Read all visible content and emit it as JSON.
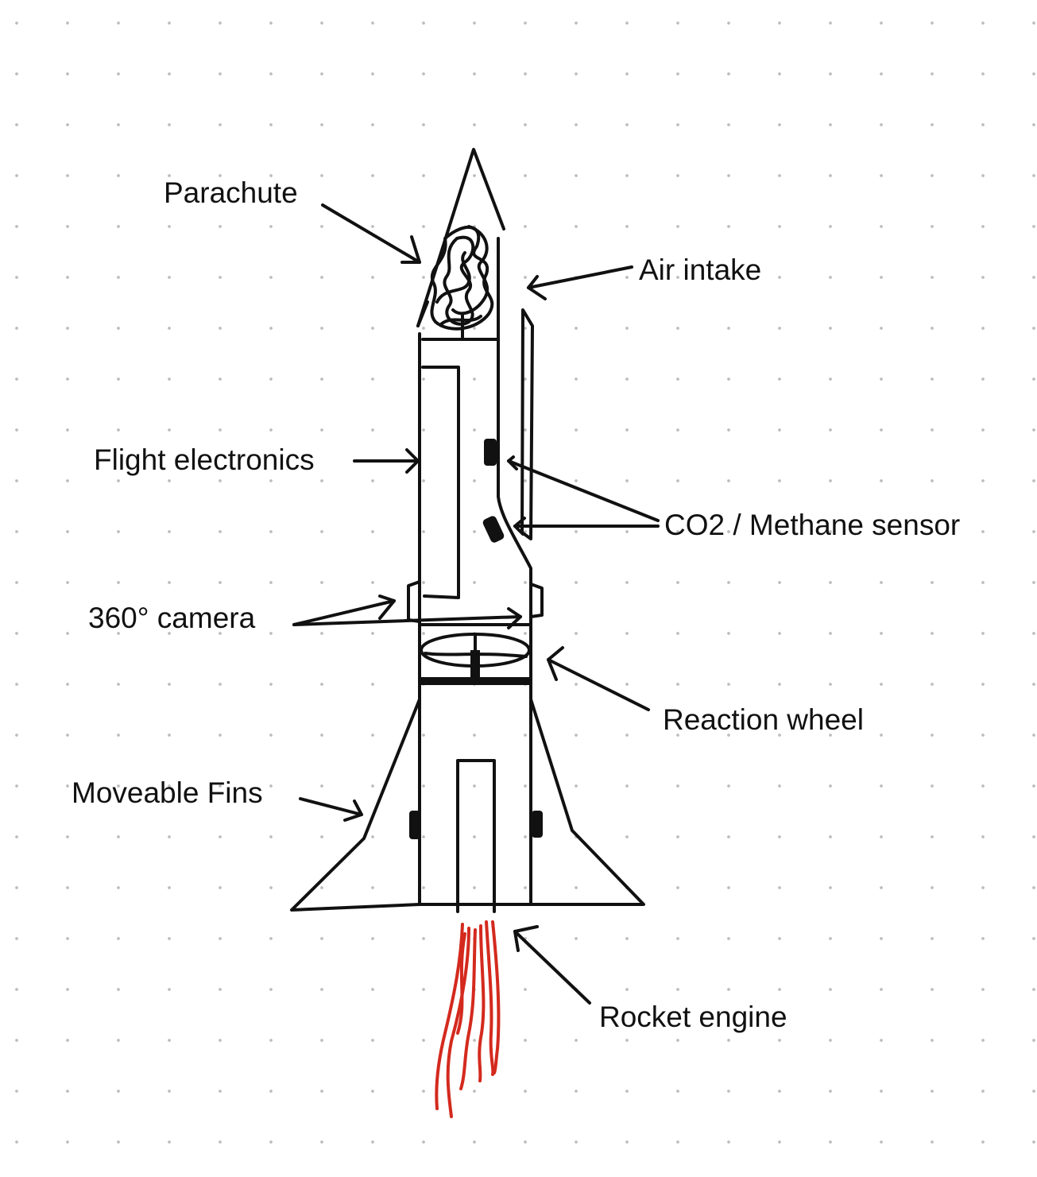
{
  "diagram": {
    "labels": {
      "parachute": "Parachute",
      "air_intake": "Air intake",
      "flight_electronics": "Flight electronics",
      "sensor": "CO2 / Methane sensor",
      "camera": "360° camera",
      "reaction_wheel": "Reaction wheel",
      "moveable_fins": "Moveable Fins",
      "rocket_engine": "Rocket engine"
    },
    "colors": {
      "ink": "#111111",
      "flame": "#d42a1e",
      "wheel_fill": "#e6e6e6",
      "grid_dot": "#bdbdbd",
      "background": "#ffffff"
    }
  }
}
